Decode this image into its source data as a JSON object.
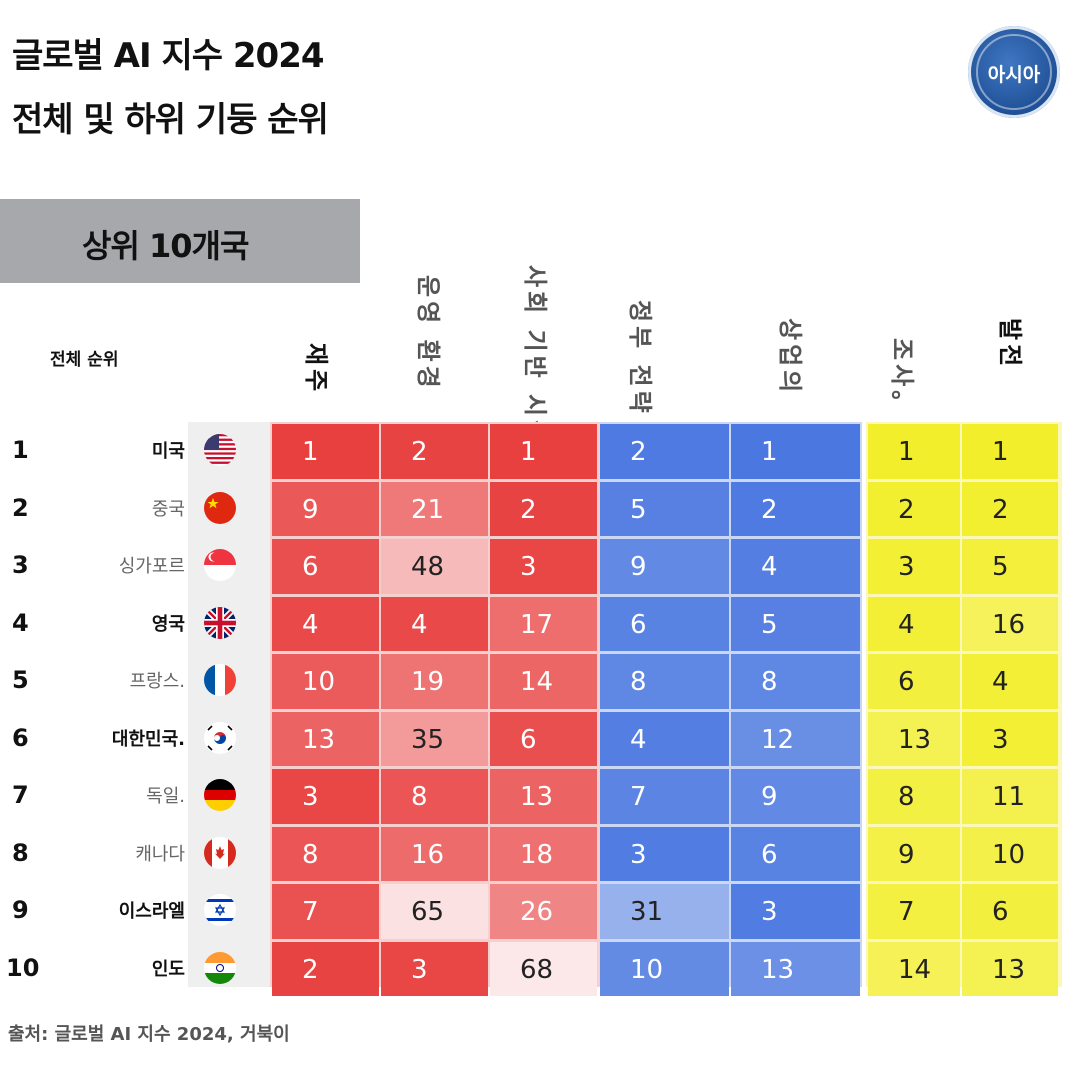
{
  "title_line1": "글로벌 AI 지수 2024",
  "title_line2": "전체 및 하위 기둥 순위",
  "logo_text": "아시아",
  "banner": "상위 10개국",
  "overall_rank_header": "전체 순위",
  "source": "출처: 글로벌 AI 지수 2024, 거북이",
  "colors": {
    "red_base": "#e83f3f",
    "blue_base": "#4a77e0",
    "yellow_base": "#f2ee2c",
    "banner_bg": "#a7a8ab"
  },
  "chart_data": {
    "type": "table",
    "column_headers": [
      "재주",
      "운영 환경",
      "사회 기반 시설",
      "정부 전략",
      "상업의",
      "조사。",
      "발전"
    ],
    "column_groups": [
      {
        "color": "red",
        "columns": [
          0,
          1,
          2
        ]
      },
      {
        "color": "blue",
        "columns": [
          3,
          4
        ]
      },
      {
        "color": "yellow",
        "columns": [
          5,
          6
        ]
      }
    ],
    "rows": [
      {
        "rank": "1",
        "country": "미국",
        "flag": "us-flag-icon",
        "values": [
          1,
          2,
          1,
          2,
          1,
          1,
          1
        ]
      },
      {
        "rank": "2",
        "country": "중국",
        "flag": "cn-flag-icon",
        "values": [
          9,
          21,
          2,
          5,
          2,
          2,
          2
        ]
      },
      {
        "rank": "3",
        "country": "싱가포르",
        "flag": "sg-flag-icon",
        "values": [
          6,
          48,
          3,
          9,
          4,
          3,
          5
        ]
      },
      {
        "rank": "4",
        "country": "영국",
        "flag": "uk-flag-icon",
        "values": [
          4,
          4,
          17,
          6,
          5,
          4,
          16
        ]
      },
      {
        "rank": "5",
        "country": "프랑스.",
        "flag": "fr-flag-icon",
        "values": [
          10,
          19,
          14,
          8,
          8,
          6,
          4
        ]
      },
      {
        "rank": "6",
        "country": "대한민국.",
        "flag": "kr-flag-icon",
        "values": [
          13,
          35,
          6,
          4,
          12,
          13,
          3
        ]
      },
      {
        "rank": "7",
        "country": "독일.",
        "flag": "de-flag-icon",
        "values": [
          3,
          8,
          13,
          7,
          9,
          8,
          11
        ]
      },
      {
        "rank": "8",
        "country": "캐나다",
        "flag": "ca-flag-icon",
        "values": [
          8,
          16,
          18,
          3,
          6,
          9,
          10
        ]
      },
      {
        "rank": "9",
        "country": "이스라엘",
        "flag": "il-flag-icon",
        "values": [
          7,
          65,
          26,
          31,
          3,
          7,
          6
        ]
      },
      {
        "rank": "10",
        "country": "인도",
        "flag": "in-flag-icon",
        "values": [
          2,
          3,
          68,
          10,
          13,
          14,
          13
        ]
      }
    ]
  }
}
